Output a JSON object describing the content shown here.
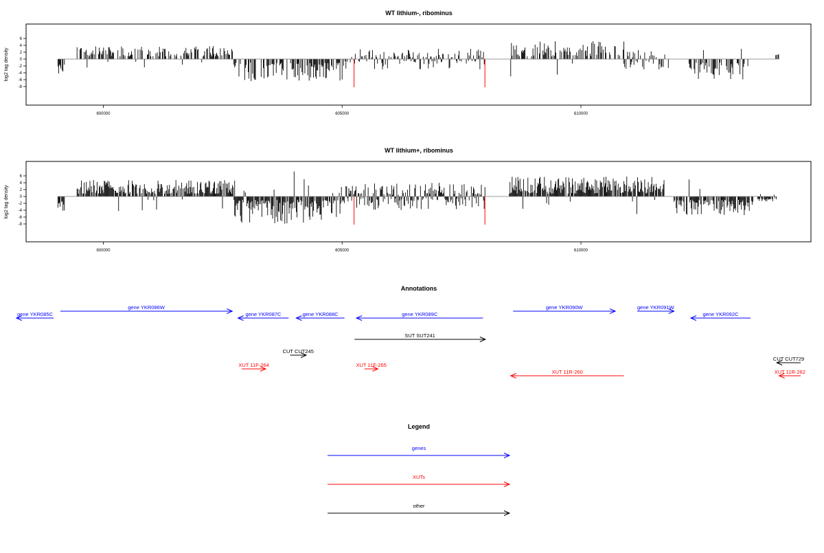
{
  "colors": {
    "gene": "#0000ff",
    "xut": "#ff0000",
    "other": "#000000",
    "marker": "#ff0000"
  },
  "chart_data": [
    {
      "type": "bar",
      "title": "WT lithium-, ribominus",
      "ylabel": "log2 tag density",
      "xlim": [
        598200,
        614800
      ],
      "ylim": [
        -8.5,
        6.5
      ],
      "xticks": [
        600000,
        605000,
        610000
      ],
      "yticks": [
        6,
        4,
        2,
        0,
        -2,
        -4,
        -6,
        -8
      ],
      "markers_x": [
        605250,
        607990
      ],
      "seed": 11,
      "density": 0.55,
      "segments": [
        {
          "x0": 599050,
          "x1": 599200,
          "sign": -1,
          "min": 1.5,
          "max": 5.0
        },
        {
          "x0": 599450,
          "x1": 602750,
          "sign": 1,
          "min": 0.8,
          "max": 3.8
        },
        {
          "x0": 602750,
          "x1": 605050,
          "sign": -1,
          "min": 1.0,
          "max": 6.5
        },
        {
          "x0": 605050,
          "x1": 608000,
          "sign": 0,
          "min": 0.5,
          "max": 3.0
        },
        {
          "x0": 608500,
          "x1": 610900,
          "sign": 1,
          "min": 0.8,
          "max": 5.2
        },
        {
          "x0": 610900,
          "x1": 611850,
          "sign": 0,
          "min": 0.5,
          "max": 3.0
        },
        {
          "x0": 612250,
          "x1": 613500,
          "sign": -1,
          "min": 1.0,
          "max": 6.0
        },
        {
          "x0": 614050,
          "x1": 614150,
          "sign": 1,
          "min": 1.0,
          "max": 1.6
        }
      ]
    },
    {
      "type": "bar",
      "title": "WT lithium+, ribominus",
      "ylabel": "log2 tag density",
      "xlim": [
        598200,
        614800
      ],
      "ylim": [
        -8.5,
        6.5
      ],
      "xticks": [
        600000,
        605000,
        610000
      ],
      "yticks": [
        6,
        4,
        2,
        0,
        -2,
        -4,
        -6,
        -8
      ],
      "markers_x": [
        605250,
        607990
      ],
      "seed": 29,
      "density": 0.85,
      "segments": [
        {
          "x0": 599050,
          "x1": 599200,
          "sign": -1,
          "min": 1.5,
          "max": 4.8
        },
        {
          "x0": 599450,
          "x1": 602750,
          "sign": 1,
          "min": 0.8,
          "max": 5.0
        },
        {
          "x0": 602750,
          "x1": 605050,
          "sign": -1,
          "min": 1.0,
          "max": 8.0
        },
        {
          "x0": 605050,
          "x1": 608000,
          "sign": 0,
          "min": 0.5,
          "max": 4.0
        },
        {
          "x0": 608500,
          "x1": 611750,
          "sign": 1,
          "min": 0.8,
          "max": 5.8
        },
        {
          "x0": 611950,
          "x1": 613600,
          "sign": -1,
          "min": 1.0,
          "max": 5.5
        },
        {
          "x0": 613700,
          "x1": 614100,
          "sign": -1,
          "min": 0.5,
          "max": 1.5
        }
      ]
    }
  ],
  "annotations": {
    "title": "Annotations",
    "xlim": [
      598200,
      614800
    ],
    "features": [
      {
        "label": "gene YKR085C",
        "type": "gene",
        "strand": "-",
        "x0": 598180,
        "x1": 598960,
        "row": 1
      },
      {
        "label": "gene YKR086W",
        "type": "gene",
        "strand": "+",
        "x0": 599100,
        "x1": 602700,
        "row": 0
      },
      {
        "label": "gene YKR087C",
        "type": "gene",
        "strand": "-",
        "x0": 602820,
        "x1": 603880,
        "row": 1
      },
      {
        "label": "gene YKR088C",
        "type": "gene",
        "strand": "-",
        "x0": 604040,
        "x1": 605050,
        "row": 1
      },
      {
        "label": "gene YKR089C",
        "type": "gene",
        "strand": "-",
        "x0": 605300,
        "x1": 607950,
        "row": 1
      },
      {
        "label": "gene YKR090W",
        "type": "gene",
        "strand": "+",
        "x0": 608580,
        "x1": 610720,
        "row": 0
      },
      {
        "label": "gene YKR091W",
        "type": "gene",
        "strand": "+",
        "x0": 611180,
        "x1": 611950,
        "row": 0
      },
      {
        "label": "gene YKR092C",
        "type": "gene",
        "strand": "-",
        "x0": 612300,
        "x1": 613550,
        "row": 1
      },
      {
        "label": "SUT SUT241",
        "type": "other",
        "strand": "+",
        "x0": 605260,
        "x1": 608000,
        "row": 2
      },
      {
        "label": "CUT CUT245",
        "type": "other",
        "strand": "+",
        "x0": 603910,
        "x1": 604250,
        "row": 3
      },
      {
        "label": "CUT CUT729",
        "type": "other",
        "strand": "-",
        "x0": 614100,
        "x1": 614600,
        "row": 4
      },
      {
        "label": "XUT 11F-264",
        "type": "xut",
        "strand": "+",
        "x0": 602900,
        "x1": 603400,
        "row": 5
      },
      {
        "label": "XUT 11F-265",
        "type": "xut",
        "strand": "+",
        "x0": 605470,
        "x1": 605750,
        "row": 5
      },
      {
        "label": "XUT 11R-260",
        "type": "xut",
        "strand": "-",
        "x0": 608530,
        "x1": 610900,
        "row": 6
      },
      {
        "label": "XUT 11R-262",
        "type": "xut",
        "strand": "-",
        "x0": 614150,
        "x1": 614600,
        "row": 6
      }
    ]
  },
  "legend": {
    "title": "Legend",
    "items": [
      {
        "label": "genes",
        "type": "gene"
      },
      {
        "label": "XUTs",
        "type": "xut"
      },
      {
        "label": "other",
        "type": "other"
      }
    ]
  }
}
